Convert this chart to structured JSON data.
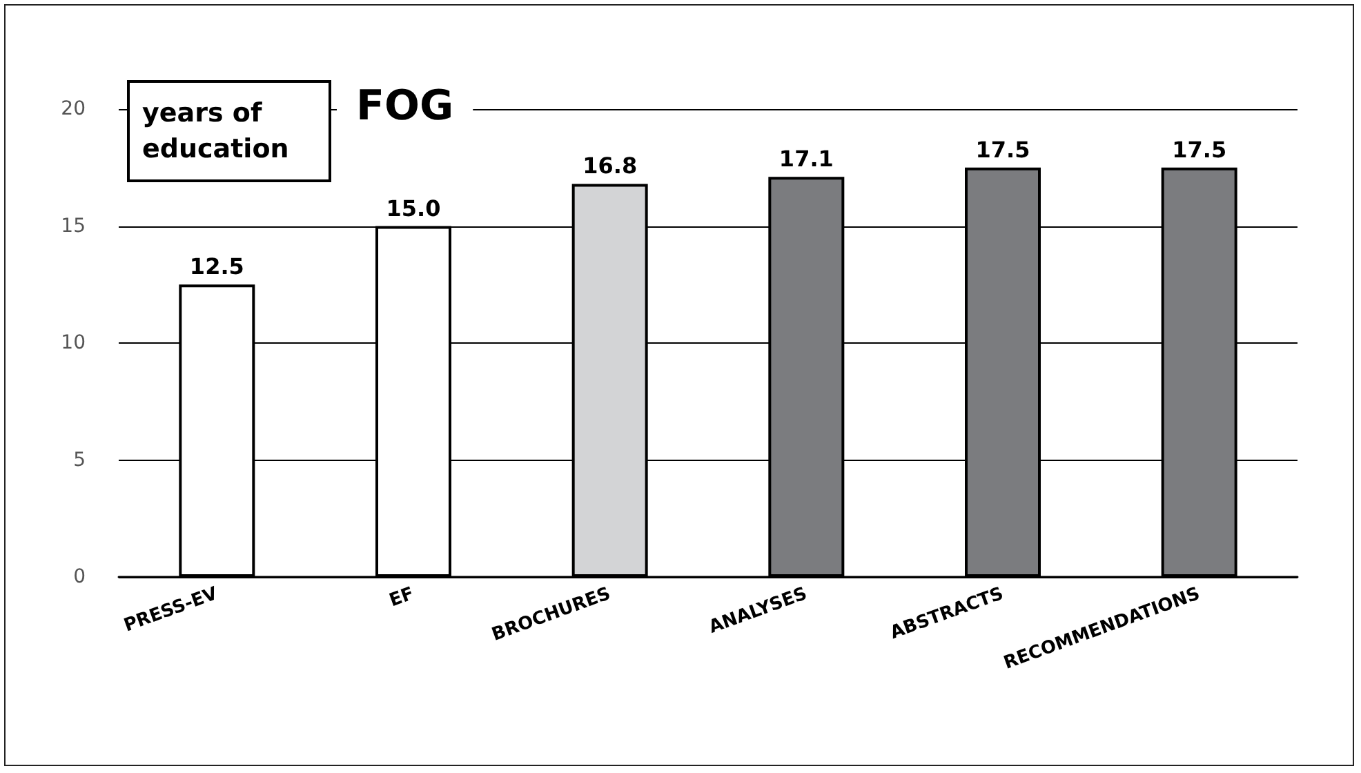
{
  "chart_data": {
    "type": "bar",
    "title": "FOG",
    "ylabel": "years of education",
    "categories": [
      "PRESS-EV",
      "EF",
      "BROCHURES",
      "ANALYSES",
      "ABSTRACTS",
      "RECOMMENDATIONS"
    ],
    "values": [
      12.5,
      15.0,
      16.8,
      17.1,
      17.5,
      17.5
    ],
    "colors": [
      "#ffffff",
      "#ffffff",
      "#d3d4d6",
      "#7b7c7f",
      "#7b7c7f",
      "#7b7c7f"
    ],
    "value_labels": [
      "12.5",
      "15.0",
      "16.8",
      "17.1",
      "17.5",
      "17.5"
    ],
    "ylim": [
      0,
      20
    ],
    "yticks": [
      0,
      5,
      10,
      15,
      20
    ],
    "grid": "y"
  }
}
